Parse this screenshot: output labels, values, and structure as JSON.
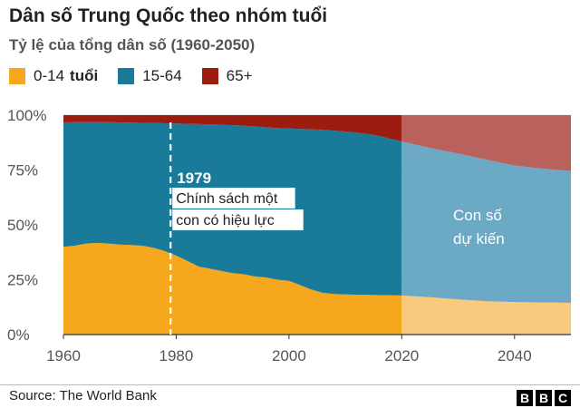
{
  "header": {
    "title": "Dân số Trung Quốc theo nhóm tuổi",
    "subtitle": "Tỷ lệ của tổng dân số (1960-2050)"
  },
  "legend": [
    {
      "label": "0-14",
      "suffix": "tuổi",
      "color": "#f5a81d"
    },
    {
      "label": "15-64",
      "suffix": "",
      "color": "#1a7a99"
    },
    {
      "label": "65+",
      "suffix": "",
      "color": "#9c1c0f"
    }
  ],
  "footer": {
    "source": "Source: The World Bank",
    "logo": [
      "B",
      "B",
      "C"
    ]
  },
  "chart_data": {
    "type": "area",
    "stacked": true,
    "x": [
      1960,
      1962,
      1964,
      1966,
      1968,
      1970,
      1972,
      1974,
      1976,
      1978,
      1980,
      1982,
      1984,
      1986,
      1988,
      1990,
      1992,
      1994,
      1996,
      1998,
      2000,
      2002,
      2004,
      2006,
      2008,
      2010,
      2012,
      2014,
      2016,
      2018,
      2020,
      2025,
      2030,
      2035,
      2040,
      2045,
      2050
    ],
    "series": [
      {
        "name": "0-14 tuổi",
        "color": "#f5a81d",
        "projected_color": "#f9c97d",
        "values": [
          40,
          40.5,
          41.5,
          41.8,
          41.5,
          41,
          40.8,
          40.5,
          39.5,
          38,
          36,
          33.5,
          31,
          30,
          29,
          28,
          27.5,
          26.5,
          26,
          25,
          24.5,
          22.5,
          20.5,
          19,
          18.5,
          18.3,
          18.2,
          18.1,
          18,
          17.9,
          17.8,
          17,
          16,
          15.2,
          14.8,
          14.6,
          14.5
        ]
      },
      {
        "name": "15-64",
        "color": "#1a7a99",
        "projected_color": "#6ba9c4",
        "values": [
          56.7,
          56.3,
          55.3,
          55,
          55.3,
          55.7,
          55.8,
          56,
          56.9,
          58.3,
          60.2,
          62.5,
          64.9,
          65.8,
          66.6,
          67.4,
          67.7,
          68.3,
          68.4,
          69.1,
          69.4,
          71.2,
          73,
          74.3,
          74.4,
          74.2,
          73.8,
          73.3,
          72.5,
          71.3,
          70.2,
          68,
          66.5,
          64.5,
          62.2,
          61,
          60
        ]
      },
      {
        "name": "65+",
        "color": "#9c1c0f",
        "projected_color": "#b9615c",
        "values": [
          3.3,
          3.2,
          3.2,
          3.2,
          3.2,
          3.3,
          3.4,
          3.5,
          3.6,
          3.7,
          3.8,
          4,
          4.1,
          4.2,
          4.4,
          4.6,
          4.8,
          5.2,
          5.6,
          5.9,
          6.1,
          6.3,
          6.5,
          6.7,
          7.1,
          7.5,
          8,
          8.6,
          9.5,
          10.8,
          12,
          15,
          17.5,
          20.3,
          23,
          24.4,
          25.5
        ]
      }
    ],
    "projection_start": 2020,
    "xlim": [
      1960,
      2050
    ],
    "ylim": [
      0,
      100
    ],
    "xticks": [
      1960,
      1980,
      2000,
      2020,
      2040
    ],
    "yticks": [
      0,
      25,
      50,
      75,
      100
    ],
    "ytick_labels": [
      "0%",
      "25%",
      "50%",
      "75%",
      "100%"
    ],
    "annotations": [
      {
        "x": 1979,
        "year_label": "1979",
        "lines": [
          "Chính sách một",
          "con có hiệu lực"
        ],
        "line_style": "dashed"
      },
      {
        "x": 2035,
        "lines": [
          "Con số",
          "dự kiến"
        ]
      }
    ]
  }
}
